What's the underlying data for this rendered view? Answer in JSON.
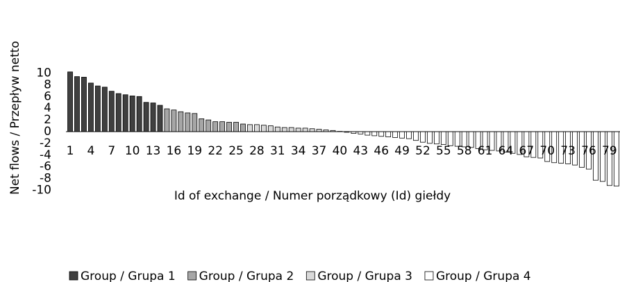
{
  "chart_data": {
    "type": "bar",
    "x_label": "Id of exchange / Numer porządkowy (Id) giełdy",
    "y_label": "Net flows / Przepływ netto",
    "categories": [
      "1",
      null,
      null,
      "4",
      null,
      null,
      "7",
      null,
      null,
      "10",
      null,
      null,
      "13",
      null,
      null,
      "16",
      null,
      null,
      "19",
      null,
      null,
      "22",
      null,
      null,
      "25",
      null,
      null,
      "28",
      null,
      null,
      "31",
      null,
      null,
      "34",
      null,
      null,
      "37",
      null,
      null,
      "40",
      null,
      null,
      "43",
      null,
      null,
      "46",
      null,
      null,
      "49",
      null,
      null,
      "52",
      null,
      null,
      "55",
      null,
      null,
      "58",
      null,
      null,
      "61",
      null,
      null,
      "64",
      null,
      null,
      "67",
      null,
      null,
      "70",
      null,
      null,
      "73",
      null,
      null,
      "76",
      null,
      null,
      "79",
      null
    ],
    "series": [
      {
        "name": "Group / Grupa 1",
        "color": "#404040",
        "values": [
          10.2,
          9.4,
          9.3,
          8.3,
          7.8,
          7.6,
          6.9,
          6.5,
          6.3,
          6.1,
          6.0,
          5.0,
          4.9,
          4.5,
          null,
          null,
          null,
          null,
          null,
          null,
          null,
          null,
          null,
          null,
          null,
          null,
          null,
          null,
          null,
          null,
          null,
          null,
          null,
          null,
          null,
          null,
          null,
          null,
          null,
          null,
          null,
          null,
          null,
          null,
          null,
          null,
          null,
          null,
          null,
          null,
          null,
          null,
          null,
          null,
          null,
          null,
          null,
          null,
          null,
          null,
          null,
          null,
          null,
          null,
          null,
          null,
          null,
          null,
          null,
          null,
          null,
          null,
          null,
          null,
          null,
          null,
          null,
          null,
          null,
          null
        ]
      },
      {
        "name": "Group / Grupa 2",
        "color": "#a6a6a6",
        "values": [
          null,
          null,
          null,
          null,
          null,
          null,
          null,
          null,
          null,
          null,
          null,
          null,
          null,
          null,
          3.9,
          3.7,
          3.4,
          3.2,
          3.1,
          2.2,
          2.0,
          1.7,
          1.7,
          1.6,
          1.6,
          1.3,
          null,
          null,
          null,
          null,
          null,
          null,
          null,
          null,
          null,
          null,
          null,
          null,
          null,
          null,
          null,
          null,
          null,
          null,
          null,
          null,
          null,
          null,
          null,
          null,
          null,
          null,
          null,
          null,
          null,
          null,
          null,
          null,
          null,
          null,
          null,
          null,
          null,
          null,
          null,
          null,
          null,
          null,
          null,
          null,
          null,
          null,
          null,
          null,
          null,
          null,
          null,
          null,
          null,
          null
        ]
      },
      {
        "name": "Group / Grupa 3",
        "color": "#d9d9d9",
        "values": [
          null,
          null,
          null,
          null,
          null,
          null,
          null,
          null,
          null,
          null,
          null,
          null,
          null,
          null,
          null,
          null,
          null,
          null,
          null,
          null,
          null,
          null,
          null,
          null,
          null,
          null,
          1.2,
          1.2,
          1.1,
          1.0,
          0.8,
          0.7,
          0.7,
          0.6,
          0.6,
          0.5,
          0.4,
          0.3,
          0.2,
          0.05,
          null,
          null,
          null,
          null,
          null,
          null,
          null,
          null,
          null,
          null,
          null,
          null,
          null,
          null,
          null,
          null,
          null,
          null,
          null,
          null,
          null,
          null,
          null,
          null,
          null,
          null,
          null,
          null,
          null,
          null,
          null,
          null,
          null,
          null,
          null,
          null,
          null,
          null,
          null,
          null
        ]
      },
      {
        "name": "Group / Grupa 4",
        "color": "#ffffff",
        "values": [
          null,
          null,
          null,
          null,
          null,
          null,
          null,
          null,
          null,
          null,
          null,
          null,
          null,
          null,
          null,
          null,
          null,
          null,
          null,
          null,
          null,
          null,
          null,
          null,
          null,
          null,
          null,
          null,
          null,
          null,
          null,
          null,
          null,
          null,
          null,
          null,
          null,
          null,
          null,
          null,
          -0.1,
          -0.3,
          -0.4,
          -0.6,
          -0.7,
          -0.8,
          -0.9,
          -1.0,
          -1.1,
          -1.2,
          -1.5,
          -1.8,
          -2.0,
          -2.1,
          -2.2,
          -2.4,
          -2.5,
          -2.6,
          -2.7,
          -2.9,
          -3.1,
          -3.2,
          -3.3,
          -3.5,
          -3.7,
          -3.9,
          -4.3,
          -4.4,
          -4.5,
          -5.1,
          -5.3,
          -5.4,
          -5.5,
          -5.7,
          -6.1,
          -6.4,
          -8.3,
          -8.5,
          -9.2,
          -9.3
        ]
      }
    ],
    "ylim": [
      -10,
      10.2
    ],
    "yticks": [
      -10,
      -8,
      -6,
      -4,
      -2,
      0,
      2,
      4,
      6,
      8,
      10
    ],
    "grid": false,
    "legend": "bottom"
  }
}
